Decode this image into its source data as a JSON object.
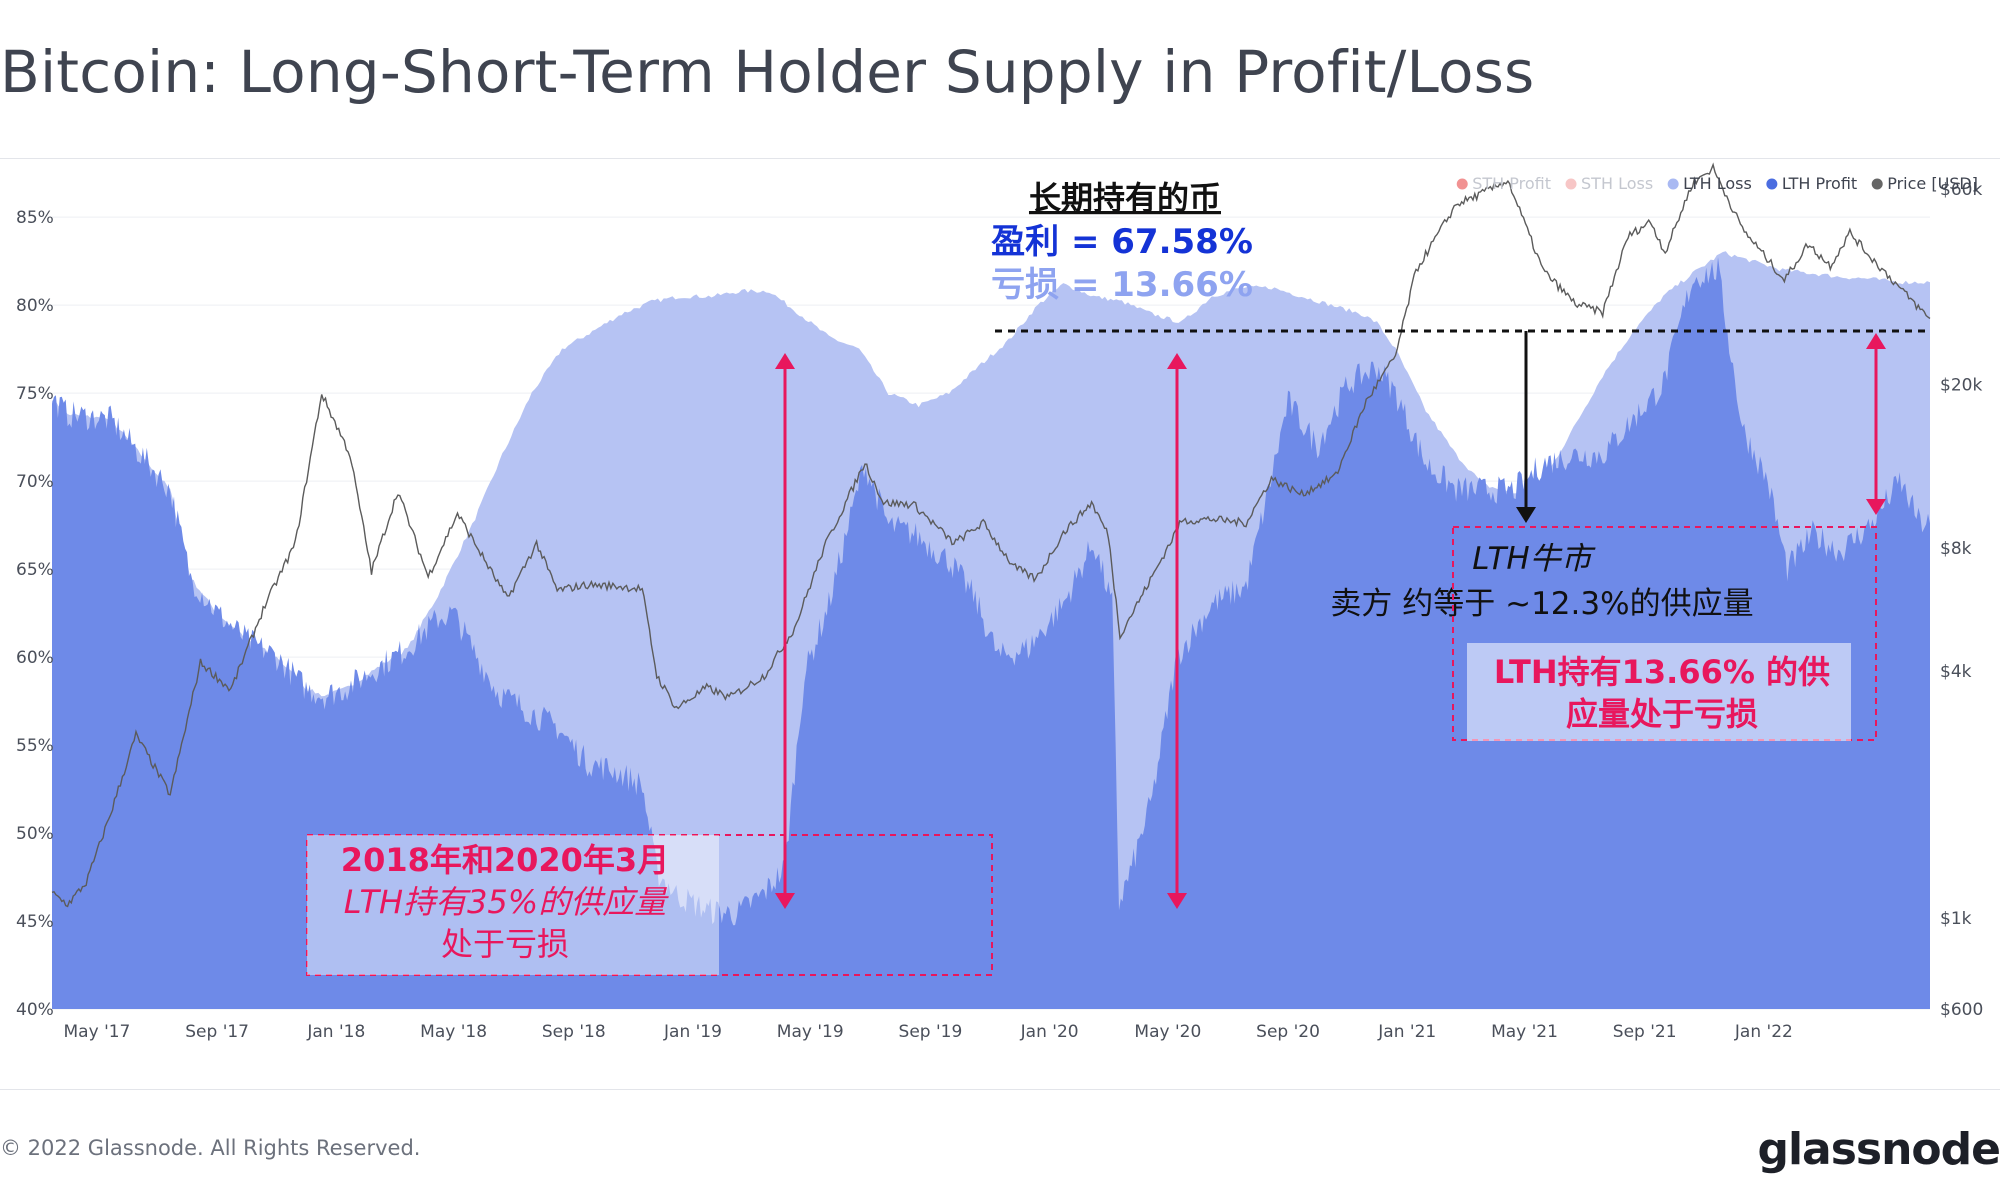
{
  "title": "Bitcoin: Long-Short-Term Holder Supply in Profit/Loss",
  "footer": {
    "copyright": "© 2022 Glassnode. All Rights Reserved.",
    "logo": "glassnode"
  },
  "watermark": "glassnode",
  "colors": {
    "lth_profit": "#6e8ae8",
    "lth_loss": "#b6c3f3",
    "sth_profit": "#e84a4a",
    "sth_loss": "#f2a0a0",
    "price": "#5b5b5b",
    "annotation": "#e8175d",
    "profit_text": "#1433d6",
    "loss_text": "#8ea3f0"
  },
  "chart_data": {
    "type": "area",
    "x_ticks": [
      "May '17",
      "Sep '17",
      "Jan '18",
      "May '18",
      "Sep '18",
      "Jan '19",
      "May '19",
      "Sep '19",
      "Jan '20",
      "May '20",
      "Sep '20",
      "Jan '21",
      "May '21",
      "Sep '21",
      "Jan '22"
    ],
    "x_range": [
      "2017-03-16",
      "2022-06-20"
    ],
    "y_left_ticks": [
      "85%",
      "80%",
      "75%",
      "70%",
      "65%",
      "60%",
      "55%",
      "50%",
      "45%",
      "40%"
    ],
    "y_left_range": [
      40,
      86.6
    ],
    "y_right_ticks": [
      "$60k",
      "$20k",
      "$8k",
      "$4k",
      "$1k",
      "$600"
    ],
    "y_right_scale": "log",
    "y_right_range": [
      600,
      60000
    ],
    "legend": [
      {
        "label": "STH Profit",
        "color": "#e84a4a",
        "faded": true
      },
      {
        "label": "STH Loss",
        "color": "#f2a0a0",
        "faded": true
      },
      {
        "label": "LTH Loss",
        "color": "#a9b9f2",
        "faded": false
      },
      {
        "label": "LTH Profit",
        "color": "#4b6de0",
        "faded": false
      },
      {
        "label": "Price [USD]",
        "color": "#666666",
        "faded": false
      }
    ],
    "legend_position": "top-right",
    "series": [
      {
        "name": "LTH Profit",
        "points": [
          [
            "2017-03-16",
            74.7
          ],
          [
            "2017-04-01",
            73.8
          ],
          [
            "2017-05-15",
            73.5
          ],
          [
            "2017-06-15",
            71.5
          ],
          [
            "2017-07-15",
            69.5
          ],
          [
            "2017-08-05",
            64.5
          ],
          [
            "2017-09-01",
            62.5
          ],
          [
            "2017-10-01",
            61.0
          ],
          [
            "2017-11-01",
            60.0
          ],
          [
            "2017-12-01",
            58.2
          ],
          [
            "2017-12-20",
            57.8
          ],
          [
            "2018-01-10",
            58.2
          ],
          [
            "2018-02-15",
            59.5
          ],
          [
            "2018-03-15",
            60.5
          ],
          [
            "2018-04-15",
            62.2
          ],
          [
            "2018-05-01",
            62.5
          ],
          [
            "2018-05-20",
            60.5
          ],
          [
            "2018-06-15",
            58.0
          ],
          [
            "2018-07-15",
            57.0
          ],
          [
            "2018-08-15",
            56.0
          ],
          [
            "2018-09-15",
            54.0
          ],
          [
            "2018-10-15",
            53.5
          ],
          [
            "2018-11-10",
            52.7
          ],
          [
            "2018-11-25",
            47.8
          ],
          [
            "2018-12-15",
            46.5
          ],
          [
            "2019-01-15",
            45.6
          ],
          [
            "2019-02-15",
            45.4
          ],
          [
            "2019-03-15",
            46.6
          ],
          [
            "2019-04-05",
            48.0
          ],
          [
            "2019-04-25",
            59.0
          ],
          [
            "2019-05-20",
            63.0
          ],
          [
            "2019-06-25",
            71.0
          ],
          [
            "2019-07-20",
            67.5
          ],
          [
            "2019-08-15",
            67.0
          ],
          [
            "2019-09-20",
            65.5
          ],
          [
            "2019-10-15",
            63.5
          ],
          [
            "2019-11-10",
            60.0
          ],
          [
            "2019-12-10",
            60.5
          ],
          [
            "2020-01-15",
            63.0
          ],
          [
            "2020-02-15",
            66.5
          ],
          [
            "2020-03-05",
            63.0
          ],
          [
            "2020-03-12",
            46.0
          ],
          [
            "2020-03-25",
            48.0
          ],
          [
            "2020-04-15",
            52.0
          ],
          [
            "2020-05-10",
            60.0
          ],
          [
            "2020-06-15",
            63.0
          ],
          [
            "2020-07-20",
            64.0
          ],
          [
            "2020-08-10",
            69.0
          ],
          [
            "2020-09-01",
            74.5
          ],
          [
            "2020-10-01",
            72.0
          ],
          [
            "2020-11-01",
            75.5
          ],
          [
            "2020-12-01",
            76.5
          ],
          [
            "2020-12-20",
            75.0
          ],
          [
            "2021-01-20",
            71.0
          ],
          [
            "2021-02-20",
            69.5
          ],
          [
            "2021-03-20",
            69.5
          ],
          [
            "2021-04-20",
            69.5
          ],
          [
            "2021-05-20",
            71.0
          ],
          [
            "2021-06-20",
            71.5
          ],
          [
            "2021-07-20",
            71.5
          ],
          [
            "2021-08-20",
            73.5
          ],
          [
            "2021-09-20",
            75.5
          ],
          [
            "2021-10-20",
            81.5
          ],
          [
            "2021-11-15",
            82.0
          ],
          [
            "2021-12-10",
            73.0
          ],
          [
            "2022-01-05",
            70.0
          ],
          [
            "2022-01-25",
            65.0
          ],
          [
            "2022-02-20",
            67.0
          ],
          [
            "2022-03-20",
            66.0
          ],
          [
            "2022-04-20",
            67.5
          ],
          [
            "2022-05-20",
            70.0
          ],
          [
            "2022-06-10",
            67.6
          ],
          [
            "2022-06-20",
            67.6
          ]
        ]
      },
      {
        "name": "LTH Loss",
        "points": [
          [
            "2017-03-16",
            74.7
          ],
          [
            "2017-04-01",
            73.8
          ],
          [
            "2017-05-15",
            73.5
          ],
          [
            "2017-06-15",
            71.5
          ],
          [
            "2017-07-15",
            69.5
          ],
          [
            "2017-08-05",
            64.5
          ],
          [
            "2017-09-01",
            62.5
          ],
          [
            "2017-10-01",
            61.0
          ],
          [
            "2017-11-01",
            60.0
          ],
          [
            "2017-12-01",
            58.2
          ],
          [
            "2017-12-20",
            57.8
          ],
          [
            "2018-01-10",
            58.2
          ],
          [
            "2018-02-15",
            59.5
          ],
          [
            "2018-03-15",
            60.5
          ],
          [
            "2018-04-15",
            63.5
          ],
          [
            "2018-05-20",
            67.5
          ],
          [
            "2018-06-20",
            71.5
          ],
          [
            "2018-07-20",
            75.0
          ],
          [
            "2018-08-20",
            77.5
          ],
          [
            "2018-09-20",
            78.5
          ],
          [
            "2018-10-20",
            79.5
          ],
          [
            "2018-11-20",
            80.2
          ],
          [
            "2018-12-20",
            80.5
          ],
          [
            "2019-01-20",
            80.5
          ],
          [
            "2019-02-20",
            80.8
          ],
          [
            "2019-03-20",
            80.8
          ],
          [
            "2019-04-20",
            79.5
          ],
          [
            "2019-05-20",
            78.2
          ],
          [
            "2019-06-20",
            77.5
          ],
          [
            "2019-07-20",
            75.0
          ],
          [
            "2019-08-20",
            74.3
          ],
          [
            "2019-09-20",
            75.0
          ],
          [
            "2019-10-20",
            76.5
          ],
          [
            "2019-11-20",
            78.0
          ],
          [
            "2019-12-20",
            80.0
          ],
          [
            "2020-01-15",
            81.2
          ],
          [
            "2020-02-15",
            80.5
          ],
          [
            "2020-03-15",
            80.2
          ],
          [
            "2020-04-15",
            79.5
          ],
          [
            "2020-05-15",
            79.0
          ],
          [
            "2020-06-15",
            80.5
          ],
          [
            "2020-07-15",
            81.0
          ],
          [
            "2020-08-15",
            81.0
          ],
          [
            "2020-09-15",
            80.5
          ],
          [
            "2020-10-15",
            80.0
          ],
          [
            "2020-11-15",
            79.5
          ],
          [
            "2020-12-01",
            79.0
          ],
          [
            "2020-12-20",
            77.5
          ],
          [
            "2021-01-20",
            74.0
          ],
          [
            "2021-02-20",
            71.5
          ],
          [
            "2021-03-20",
            69.8
          ],
          [
            "2021-04-20",
            69.3
          ],
          [
            "2021-05-20",
            70.0
          ],
          [
            "2021-06-20",
            73.0
          ],
          [
            "2021-07-20",
            76.0
          ],
          [
            "2021-08-20",
            78.5
          ],
          [
            "2021-09-20",
            80.5
          ],
          [
            "2021-10-20",
            81.8
          ],
          [
            "2021-11-20",
            83.0
          ],
          [
            "2021-12-20",
            82.5
          ],
          [
            "2022-01-20",
            82.0
          ],
          [
            "2022-02-20",
            81.8
          ],
          [
            "2022-03-20",
            81.6
          ],
          [
            "2022-04-20",
            81.5
          ],
          [
            "2022-05-20",
            81.3
          ],
          [
            "2022-06-20",
            81.3
          ]
        ]
      },
      {
        "name": "Price [USD]",
        "points": [
          [
            "2017-03-16",
            1150
          ],
          [
            "2017-04-01",
            1080
          ],
          [
            "2017-04-20",
            1220
          ],
          [
            "2017-05-15",
            1800
          ],
          [
            "2017-06-10",
            2800
          ],
          [
            "2017-07-15",
            2000
          ],
          [
            "2017-08-15",
            4200
          ],
          [
            "2017-09-15",
            3600
          ],
          [
            "2017-10-20",
            5800
          ],
          [
            "2017-11-20",
            8200
          ],
          [
            "2017-12-17",
            19000
          ],
          [
            "2018-01-15",
            13500
          ],
          [
            "2018-02-06",
            7000
          ],
          [
            "2018-03-05",
            11000
          ],
          [
            "2018-04-05",
            6800
          ],
          [
            "2018-05-05",
            9700
          ],
          [
            "2018-06-25",
            6000
          ],
          [
            "2018-07-25",
            8200
          ],
          [
            "2018-08-15",
            6300
          ],
          [
            "2018-09-15",
            6500
          ],
          [
            "2018-10-15",
            6450
          ],
          [
            "2018-11-10",
            6350
          ],
          [
            "2018-11-25",
            3900
          ],
          [
            "2018-12-15",
            3250
          ],
          [
            "2019-01-15",
            3650
          ],
          [
            "2019-02-07",
            3450
          ],
          [
            "2019-03-15",
            3900
          ],
          [
            "2019-04-15",
            5100
          ],
          [
            "2019-05-15",
            8000
          ],
          [
            "2019-06-26",
            12900
          ],
          [
            "2019-07-15",
            10300
          ],
          [
            "2019-08-15",
            10200
          ],
          [
            "2019-09-25",
            8200
          ],
          [
            "2019-10-25",
            9200
          ],
          [
            "2019-11-25",
            7200
          ],
          [
            "2019-12-18",
            6700
          ],
          [
            "2020-01-15",
            8700
          ],
          [
            "2020-02-13",
            10300
          ],
          [
            "2020-03-01",
            8600
          ],
          [
            "2020-03-13",
            4900
          ],
          [
            "2020-04-15",
            6800
          ],
          [
            "2020-05-15",
            9300
          ],
          [
            "2020-06-15",
            9400
          ],
          [
            "2020-07-20",
            9200
          ],
          [
            "2020-08-15",
            11800
          ],
          [
            "2020-09-15",
            10800
          ],
          [
            "2020-10-20",
            12000
          ],
          [
            "2020-11-20",
            18200
          ],
          [
            "2020-12-20",
            23500
          ],
          [
            "2021-01-10",
            38000
          ],
          [
            "2021-02-20",
            55000
          ],
          [
            "2021-03-15",
            58000
          ],
          [
            "2021-04-14",
            63000
          ],
          [
            "2021-05-20",
            38000
          ],
          [
            "2021-06-22",
            31500
          ],
          [
            "2021-07-20",
            30000
          ],
          [
            "2021-08-15",
            46000
          ],
          [
            "2021-09-07",
            50000
          ],
          [
            "2021-09-22",
            42000
          ],
          [
            "2021-10-20",
            62000
          ],
          [
            "2021-11-10",
            67500
          ],
          [
            "2021-12-10",
            48000
          ],
          [
            "2022-01-22",
            36000
          ],
          [
            "2022-02-15",
            44000
          ],
          [
            "2022-03-10",
            39000
          ],
          [
            "2022-03-30",
            47000
          ],
          [
            "2022-04-20",
            41000
          ],
          [
            "2022-06-10",
            30500
          ],
          [
            "2022-06-20",
            29000
          ]
        ]
      }
    ]
  },
  "annotations": {
    "lth_header": {
      "title": "长期持有的币",
      "profit": "盈利 = 67.58%",
      "loss": "亏损 = 13.66%"
    },
    "lth_bull": {
      "line1": "LTH牛市",
      "line2": "卖方 约等于 ~12.3%的供应量"
    },
    "lth_loss_current": {
      "line1": "LTH持有13.66% 的供",
      "line2": "应量处于亏损"
    },
    "lth_2018": {
      "line1": "2018年和2020年3月",
      "line2": "LTH持有35%的供应量",
      "line3": "处于亏损"
    }
  }
}
